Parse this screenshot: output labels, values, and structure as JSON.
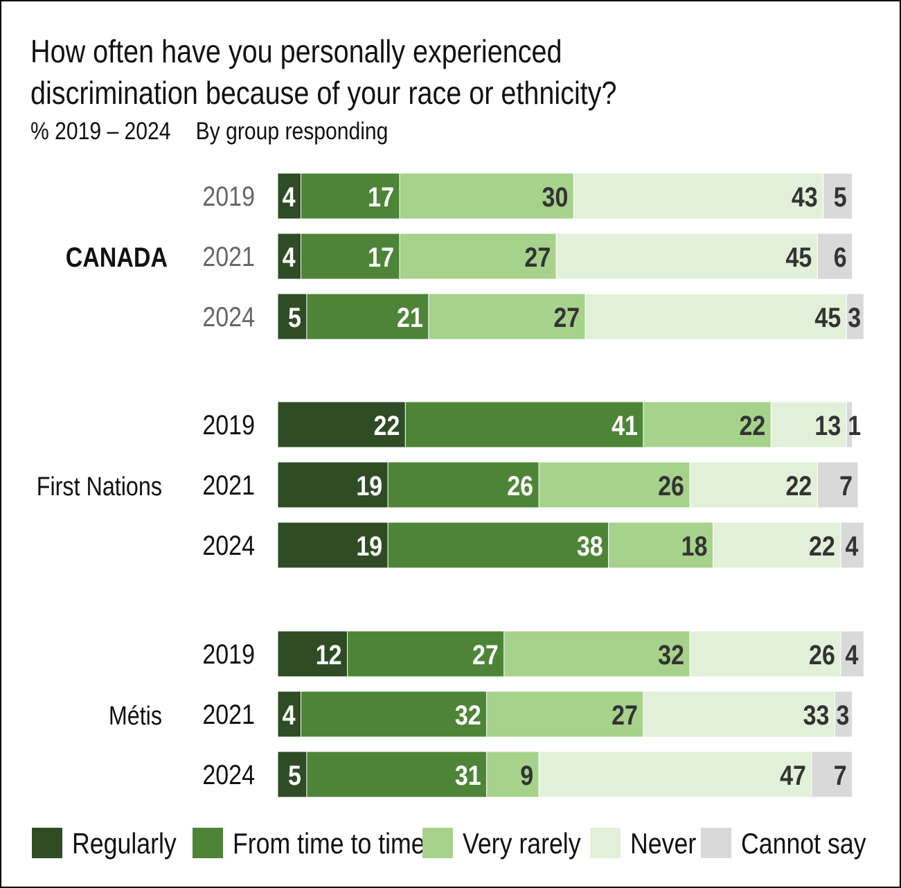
{
  "chart_data": {
    "type": "bar",
    "orientation": "horizontal-stacked-100",
    "title": "How often have you personally experienced discrimination because of your race or ethnicity?",
    "subtitle": [
      "% 2019 – 2024",
      "By group responding"
    ],
    "series": [
      {
        "name": "Regularly",
        "color": "#2f4c25"
      },
      {
        "name": "From time to time",
        "color": "#4e8437"
      },
      {
        "name": "Very rarely",
        "color": "#a6d28c"
      },
      {
        "name": "Never",
        "color": "#e2f0d9"
      },
      {
        "name": "Cannot say",
        "color": "#d9d9d9"
      }
    ],
    "groups": [
      {
        "label": "CANADA",
        "bold": true,
        "year_color": "#666666",
        "rows": [
          {
            "year": "2019",
            "values": [
              4,
              17,
              30,
              43,
              5
            ]
          },
          {
            "year": "2021",
            "values": [
              4,
              17,
              27,
              45,
              6
            ]
          },
          {
            "year": "2024",
            "values": [
              5,
              21,
              27,
              45,
              3
            ]
          }
        ]
      },
      {
        "label": "First Nations",
        "bold": false,
        "year_color": "#111111",
        "rows": [
          {
            "year": "2019",
            "values": [
              22,
              41,
              22,
              13,
              1
            ]
          },
          {
            "year": "2021",
            "values": [
              19,
              26,
              26,
              22,
              7
            ]
          },
          {
            "year": "2024",
            "values": [
              19,
              38,
              18,
              22,
              4
            ]
          }
        ]
      },
      {
        "label": "Métis",
        "bold": false,
        "year_color": "#111111",
        "rows": [
          {
            "year": "2019",
            "values": [
              12,
              27,
              32,
              26,
              4
            ]
          },
          {
            "year": "2021",
            "values": [
              4,
              32,
              27,
              33,
              3
            ]
          },
          {
            "year": "2024",
            "values": [
              5,
              31,
              9,
              47,
              7
            ]
          }
        ]
      }
    ],
    "legend_position": "bottom"
  }
}
